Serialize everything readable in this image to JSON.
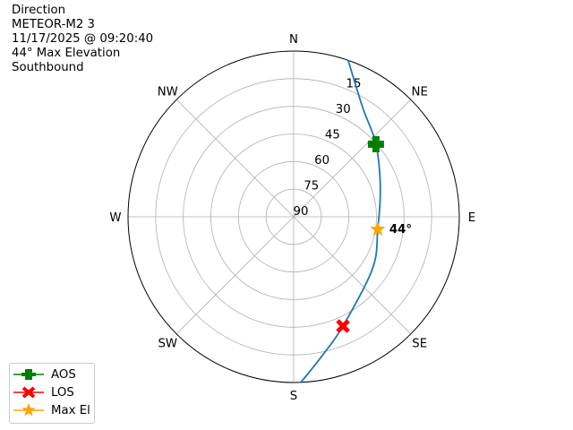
{
  "title_lines": [
    "Direction",
    "METEOR-M2 3",
    "11/17/2025 @ 09:20:40",
    "44° Max Elevation",
    "Southbound"
  ],
  "chart_data": {
    "type": "polar-line",
    "theta_direction": "clockwise",
    "theta_zero": "N",
    "direction_labels": [
      {
        "label": "N",
        "az": 0
      },
      {
        "label": "NE",
        "az": 45
      },
      {
        "label": "E",
        "az": 90
      },
      {
        "label": "SE",
        "az": 135
      },
      {
        "label": "S",
        "az": 180
      },
      {
        "label": "SW",
        "az": 225
      },
      {
        "label": "W",
        "az": 270
      },
      {
        "label": "NW",
        "az": 315
      }
    ],
    "radial_axis": {
      "quantity": "elevation",
      "inverted": true,
      "range": [
        0,
        90
      ],
      "ticks": [
        "15",
        "30",
        "45",
        "60",
        "75",
        "90"
      ],
      "tick_values": [
        15,
        30,
        45,
        60,
        75,
        90
      ]
    },
    "grid": true,
    "track": {
      "color": "#1f77b4",
      "az": [
        19.2,
        32.3,
        48.6,
        71.7,
        98.5,
        123.4,
        155.7,
        168.3,
        177.5
      ],
      "el": [
        0,
        19.8,
        30.4,
        40.4,
        43.8,
        38.7,
        24.9,
        13.1,
        0
      ]
    },
    "markers": [
      {
        "name": "AOS",
        "az": 48.6,
        "el": 30.4,
        "color": "#008000",
        "shape": "plus"
      },
      {
        "name": "LOS",
        "az": 155.7,
        "el": 24.9,
        "color": "#ff0000",
        "shape": "x"
      },
      {
        "name": "Max El",
        "az": 98.5,
        "el": 43.8,
        "color": "#ffa500",
        "shape": "star"
      }
    ],
    "annotation": "44°",
    "legend_placement": "lower-left"
  }
}
